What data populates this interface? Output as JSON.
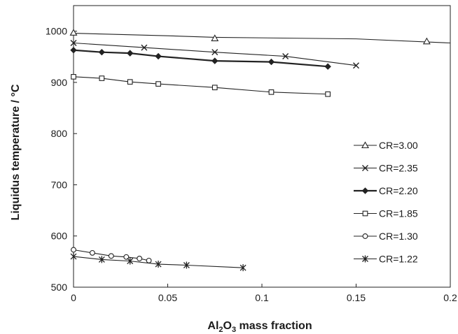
{
  "chart_data": {
    "type": "line",
    "xlabel": {
      "pre": "Al",
      "sub1": "2",
      "mid": "O",
      "sub2": "3",
      "post": " mass fraction"
    },
    "ylabel": "Liquidus temperature / °C",
    "xlim": [
      0,
      0.2
    ],
    "ylim": [
      500,
      1050
    ],
    "xticks": [
      0,
      0.05,
      0.1,
      0.15,
      0.2
    ],
    "xtick_labels": [
      "0",
      "0.05",
      "0.1",
      "0.15",
      "0.2"
    ],
    "yticks": [
      500,
      600,
      700,
      800,
      900,
      1000
    ],
    "ytick_labels": [
      "500",
      "600",
      "700",
      "800",
      "900",
      "1000"
    ],
    "grid": false,
    "legend_position": "right",
    "series": [
      {
        "name": "CR=3.00",
        "marker": "triangle",
        "bold": false,
        "x": [
          0,
          0.075,
          0.1875
        ],
        "y": [
          997,
          986,
          980
        ],
        "line": [
          [
            0,
            996
          ],
          [
            0.05,
            991
          ],
          [
            0.075,
            988
          ],
          [
            0.15,
            985
          ],
          [
            0.2,
            977
          ]
        ]
      },
      {
        "name": "CR=2.35",
        "marker": "x",
        "bold": false,
        "x": [
          0,
          0.0375,
          0.075,
          0.1125,
          0.15
        ],
        "y": [
          977,
          968,
          959,
          951,
          933
        ],
        "line": [
          [
            0,
            977
          ],
          [
            0.0375,
            968
          ],
          [
            0.075,
            959
          ],
          [
            0.1125,
            951
          ],
          [
            0.15,
            933
          ]
        ]
      },
      {
        "name": "CR=2.20",
        "marker": "diamond",
        "bold": true,
        "x": [
          0,
          0.015,
          0.03,
          0.045,
          0.075,
          0.105,
          0.135
        ],
        "y": [
          963,
          959,
          957,
          951,
          942,
          940,
          931
        ],
        "line": [
          [
            0,
            963
          ],
          [
            0.015,
            959
          ],
          [
            0.03,
            957
          ],
          [
            0.045,
            951
          ],
          [
            0.075,
            942
          ],
          [
            0.105,
            940
          ],
          [
            0.135,
            931
          ]
        ]
      },
      {
        "name": "CR=1.85",
        "marker": "square",
        "bold": false,
        "x": [
          0,
          0.015,
          0.03,
          0.045,
          0.075,
          0.105,
          0.135
        ],
        "y": [
          911,
          908,
          901,
          897,
          890,
          881,
          877
        ],
        "line": [
          [
            0,
            911
          ],
          [
            0.015,
            908
          ],
          [
            0.03,
            901
          ],
          [
            0.045,
            897
          ],
          [
            0.075,
            890
          ],
          [
            0.105,
            881
          ],
          [
            0.135,
            877
          ]
        ]
      },
      {
        "name": "CR=1.30",
        "marker": "circle",
        "bold": false,
        "x": [
          0,
          0.01,
          0.02,
          0.028,
          0.035,
          0.04
        ],
        "y": [
          573,
          567,
          561,
          559,
          556,
          552
        ],
        "line": [
          [
            0,
            573
          ],
          [
            0.01,
            567
          ],
          [
            0.02,
            561
          ],
          [
            0.028,
            559
          ],
          [
            0.035,
            556
          ],
          [
            0.04,
            552
          ]
        ]
      },
      {
        "name": "CR=1.22",
        "marker": "asterisk",
        "bold": false,
        "x": [
          0,
          0.015,
          0.03,
          0.045,
          0.06,
          0.09
        ],
        "y": [
          560,
          554,
          551,
          545,
          543,
          538
        ],
        "line": [
          [
            0,
            560
          ],
          [
            0.015,
            554
          ],
          [
            0.03,
            551
          ],
          [
            0.045,
            545
          ],
          [
            0.06,
            543
          ],
          [
            0.09,
            538
          ]
        ]
      }
    ]
  }
}
